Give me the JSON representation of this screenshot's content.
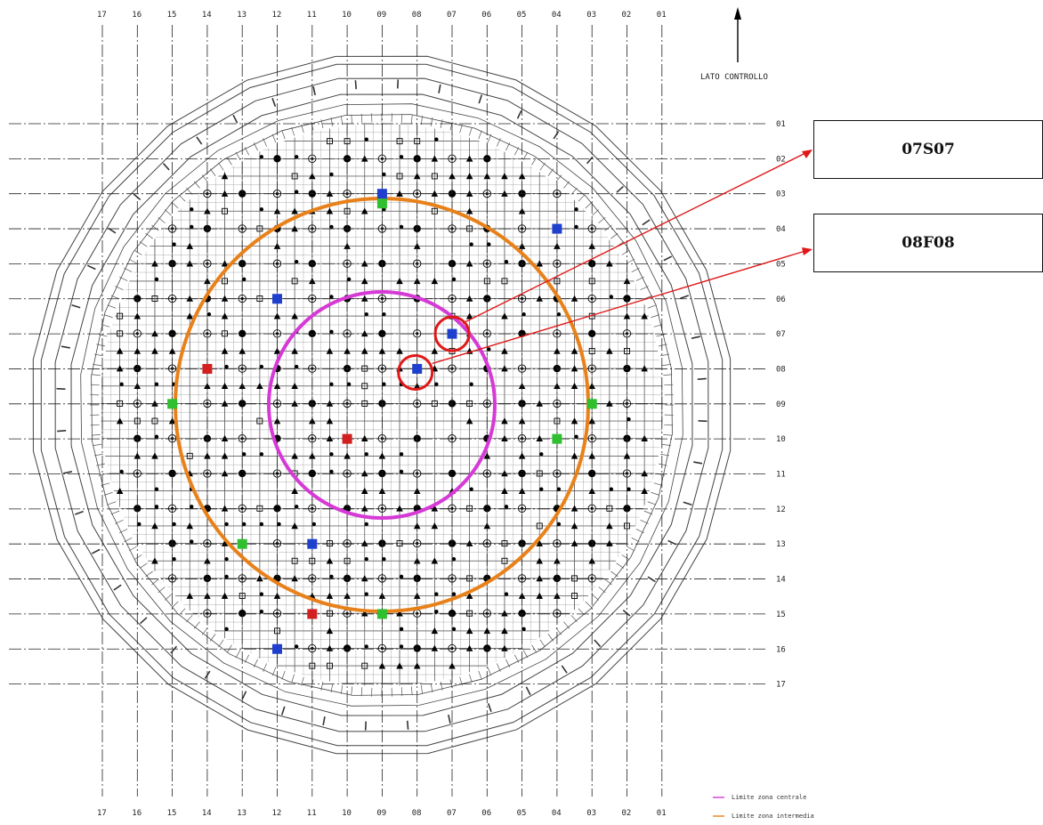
{
  "orientation_label": "LATO CONTROLLO",
  "columns": [
    "17",
    "16",
    "15",
    "14",
    "13",
    "12",
    "11",
    "10",
    "09",
    "08",
    "07",
    "06",
    "05",
    "04",
    "03",
    "02",
    "01"
  ],
  "rows": [
    "01",
    "02",
    "03",
    "04",
    "05",
    "06",
    "07",
    "08",
    "09",
    "10",
    "11",
    "12",
    "13",
    "14",
    "15",
    "16",
    "17"
  ],
  "callouts": [
    {
      "label": "07S07"
    },
    {
      "label": "08F08"
    }
  ],
  "legend": [
    {
      "label": "Limite zona centrale",
      "color": "#d63ad6"
    },
    {
      "label": "Limite zona intermedia",
      "color": "#e8811a"
    }
  ],
  "colors": {
    "zone_central": "#d63ad6",
    "zone_intermediate": "#e8811a",
    "callout_arrow": "#e01818",
    "marker_blue": "#1f3fcf",
    "marker_green": "#2fbf2f",
    "marker_red": "#d21f1f"
  },
  "highlighted_positions": [
    {
      "col": "07",
      "row": "07",
      "color": "blue"
    },
    {
      "col": "08",
      "row": "08",
      "color": "blue"
    },
    {
      "col": "09",
      "row": "03",
      "color": "blue"
    },
    {
      "col": "09",
      "row": "03",
      "color": "green"
    },
    {
      "col": "04",
      "row": "04",
      "color": "blue"
    },
    {
      "col": "12",
      "row": "06",
      "color": "blue"
    },
    {
      "col": "14",
      "row": "08",
      "color": "red"
    },
    {
      "col": "15",
      "row": "09",
      "color": "green"
    },
    {
      "col": "03",
      "row": "09",
      "color": "green"
    },
    {
      "col": "10",
      "row": "10",
      "color": "red"
    },
    {
      "col": "04",
      "row": "10",
      "color": "green"
    },
    {
      "col": "13",
      "row": "13",
      "color": "green"
    },
    {
      "col": "11",
      "row": "13",
      "color": "blue"
    },
    {
      "col": "11",
      "row": "15",
      "color": "red"
    },
    {
      "col": "09",
      "row": "15",
      "color": "green"
    },
    {
      "col": "12",
      "row": "16",
      "color": "blue"
    }
  ]
}
